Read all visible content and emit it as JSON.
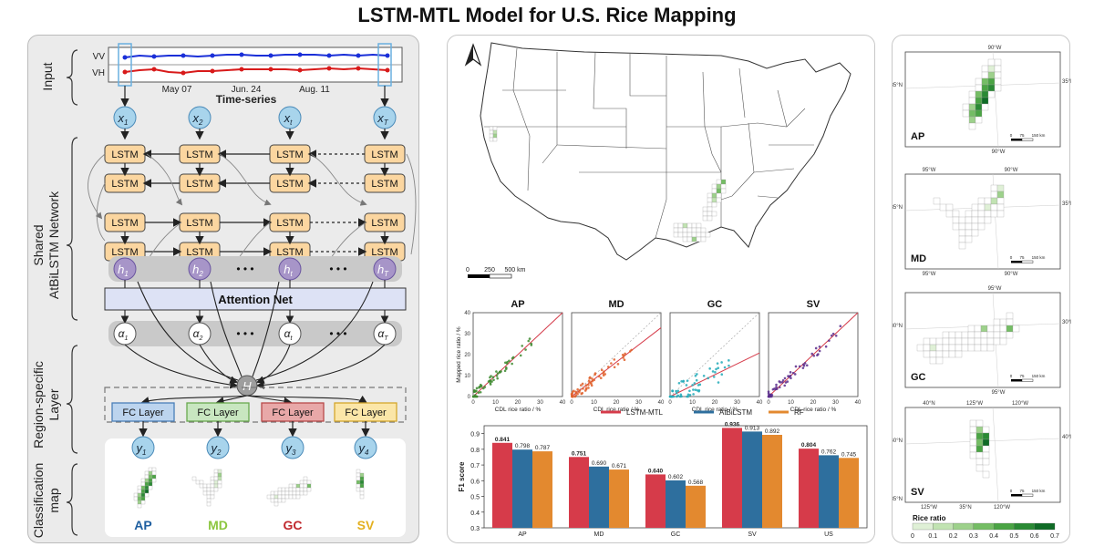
{
  "title": "LSTM-MTL Model for U.S. Rice Mapping",
  "left": {
    "stage_labels": [
      "Input",
      "Shared",
      "AtBiLSTM Network",
      "Region-specific",
      "Layer",
      "Classification",
      "map"
    ],
    "input": {
      "vv": "VV",
      "vh": "VH",
      "dates": [
        "May 07",
        "Jun. 24",
        "Aug. 11"
      ],
      "axis_label": "Time-series"
    },
    "x_nodes": [
      "x",
      "x",
      "x",
      "x"
    ],
    "x_subs": [
      "1",
      "2",
      "t",
      "T"
    ],
    "lstm_label": "LSTM",
    "h_nodes": [
      "h",
      "h",
      "h",
      "h"
    ],
    "h_subs": [
      "1",
      "2",
      "t",
      "T"
    ],
    "attention_label": "Attention Net",
    "alpha_nodes": [
      "α",
      "α",
      "α",
      "α"
    ],
    "alpha_subs": [
      "1",
      "2",
      "t",
      "T"
    ],
    "ellipsis": "• • •",
    "H_label": "H",
    "fc_label": "FC Layer",
    "y_nodes": [
      "y",
      "y",
      "y",
      "y"
    ],
    "y_subs": [
      "1",
      "2",
      "3",
      "4"
    ],
    "regions": [
      "AP",
      "MD",
      "GC",
      "SV"
    ],
    "region_colors": [
      "#1f5fa0",
      "#8cc63f",
      "#c0282d",
      "#e3b020"
    ],
    "fc_fill": [
      "#bcd4ee",
      "#c8e6c0",
      "#e8a8a8",
      "#fbe6a8"
    ],
    "fc_stroke": [
      "#4a7fb8",
      "#6aa84f",
      "#b84a4a",
      "#d4a72c"
    ]
  },
  "map": {
    "scale_ticks": [
      "0",
      "250",
      "500 km"
    ],
    "north": "N"
  },
  "scatter": {
    "panels": [
      "AP",
      "MD",
      "GC",
      "SV"
    ],
    "xlabel": "CDL rice ratio / %",
    "ylabel": "Mapped rice ratio / %",
    "ticks": [
      "0",
      "10",
      "20",
      "30",
      "40"
    ],
    "colors": [
      "#3d8a2f",
      "#e0602a",
      "#22aab8",
      "#5a2d8c"
    ]
  },
  "chart_data": {
    "type": "bar",
    "categories": [
      "AP",
      "MD",
      "GC",
      "SV",
      "US"
    ],
    "series": [
      {
        "name": "LSTM-MTL",
        "values": [
          0.841,
          0.751,
          0.64,
          0.936,
          0.804
        ],
        "color": "#d63b4a"
      },
      {
        "name": "AtBiLSTM",
        "values": [
          0.798,
          0.69,
          0.602,
          0.913,
          0.762
        ],
        "color": "#2e6f9e"
      },
      {
        "name": "RF",
        "values": [
          0.787,
          0.671,
          0.568,
          0.892,
          0.745
        ],
        "color": "#e3892f"
      }
    ],
    "value_labels": [
      [
        "0.841",
        "0.798",
        "0.787"
      ],
      [
        "0.751",
        "0.690",
        "0.671"
      ],
      [
        "0.640",
        "0.602",
        "0.568"
      ],
      [
        "0.936",
        "0.913",
        "0.892"
      ],
      [
        "0.804",
        "0.762",
        "0.745"
      ]
    ],
    "ylabel": "F1 score",
    "ylim": [
      0.3,
      0.95
    ],
    "yticks": [
      "0.3",
      "0.4",
      "0.5",
      "0.6",
      "0.7",
      "0.8",
      "0.9"
    ],
    "legend_position": "top"
  },
  "right": {
    "insets": [
      {
        "label": "AP",
        "lon_top": [
          "90°W"
        ],
        "lon_bottom": [
          "90°W"
        ],
        "lat": "35°N"
      },
      {
        "label": "MD",
        "lon_top": [
          "95°W",
          "90°W"
        ],
        "lon_bottom": [
          "95°W",
          "90°W"
        ],
        "lat": "35°N"
      },
      {
        "label": "GC",
        "lon_top": [
          "95°W"
        ],
        "lon_bottom": [
          "95°W"
        ],
        "lat": "30°N"
      },
      {
        "label": "SV",
        "lon_top": [
          "40°N",
          "125°W",
          "120°W"
        ],
        "lon_bottom": [
          "125°W",
          "35°N",
          "120°W"
        ],
        "lat": "40°N",
        "lat_bottom": "35°N"
      }
    ],
    "scale_ticks": [
      "0",
      "75",
      "150 km"
    ],
    "legend_title": "Rice ratio",
    "legend_ticks": [
      "0",
      "0.1",
      "0.2",
      "0.3",
      "0.4",
      "0.5",
      "0.6",
      "0.7"
    ],
    "legend_colors": [
      "#ffffff",
      "#dff0d6",
      "#c1e3b2",
      "#9dd18b",
      "#74bd64",
      "#4aa444",
      "#2a8a34",
      "#0f6b26"
    ]
  }
}
